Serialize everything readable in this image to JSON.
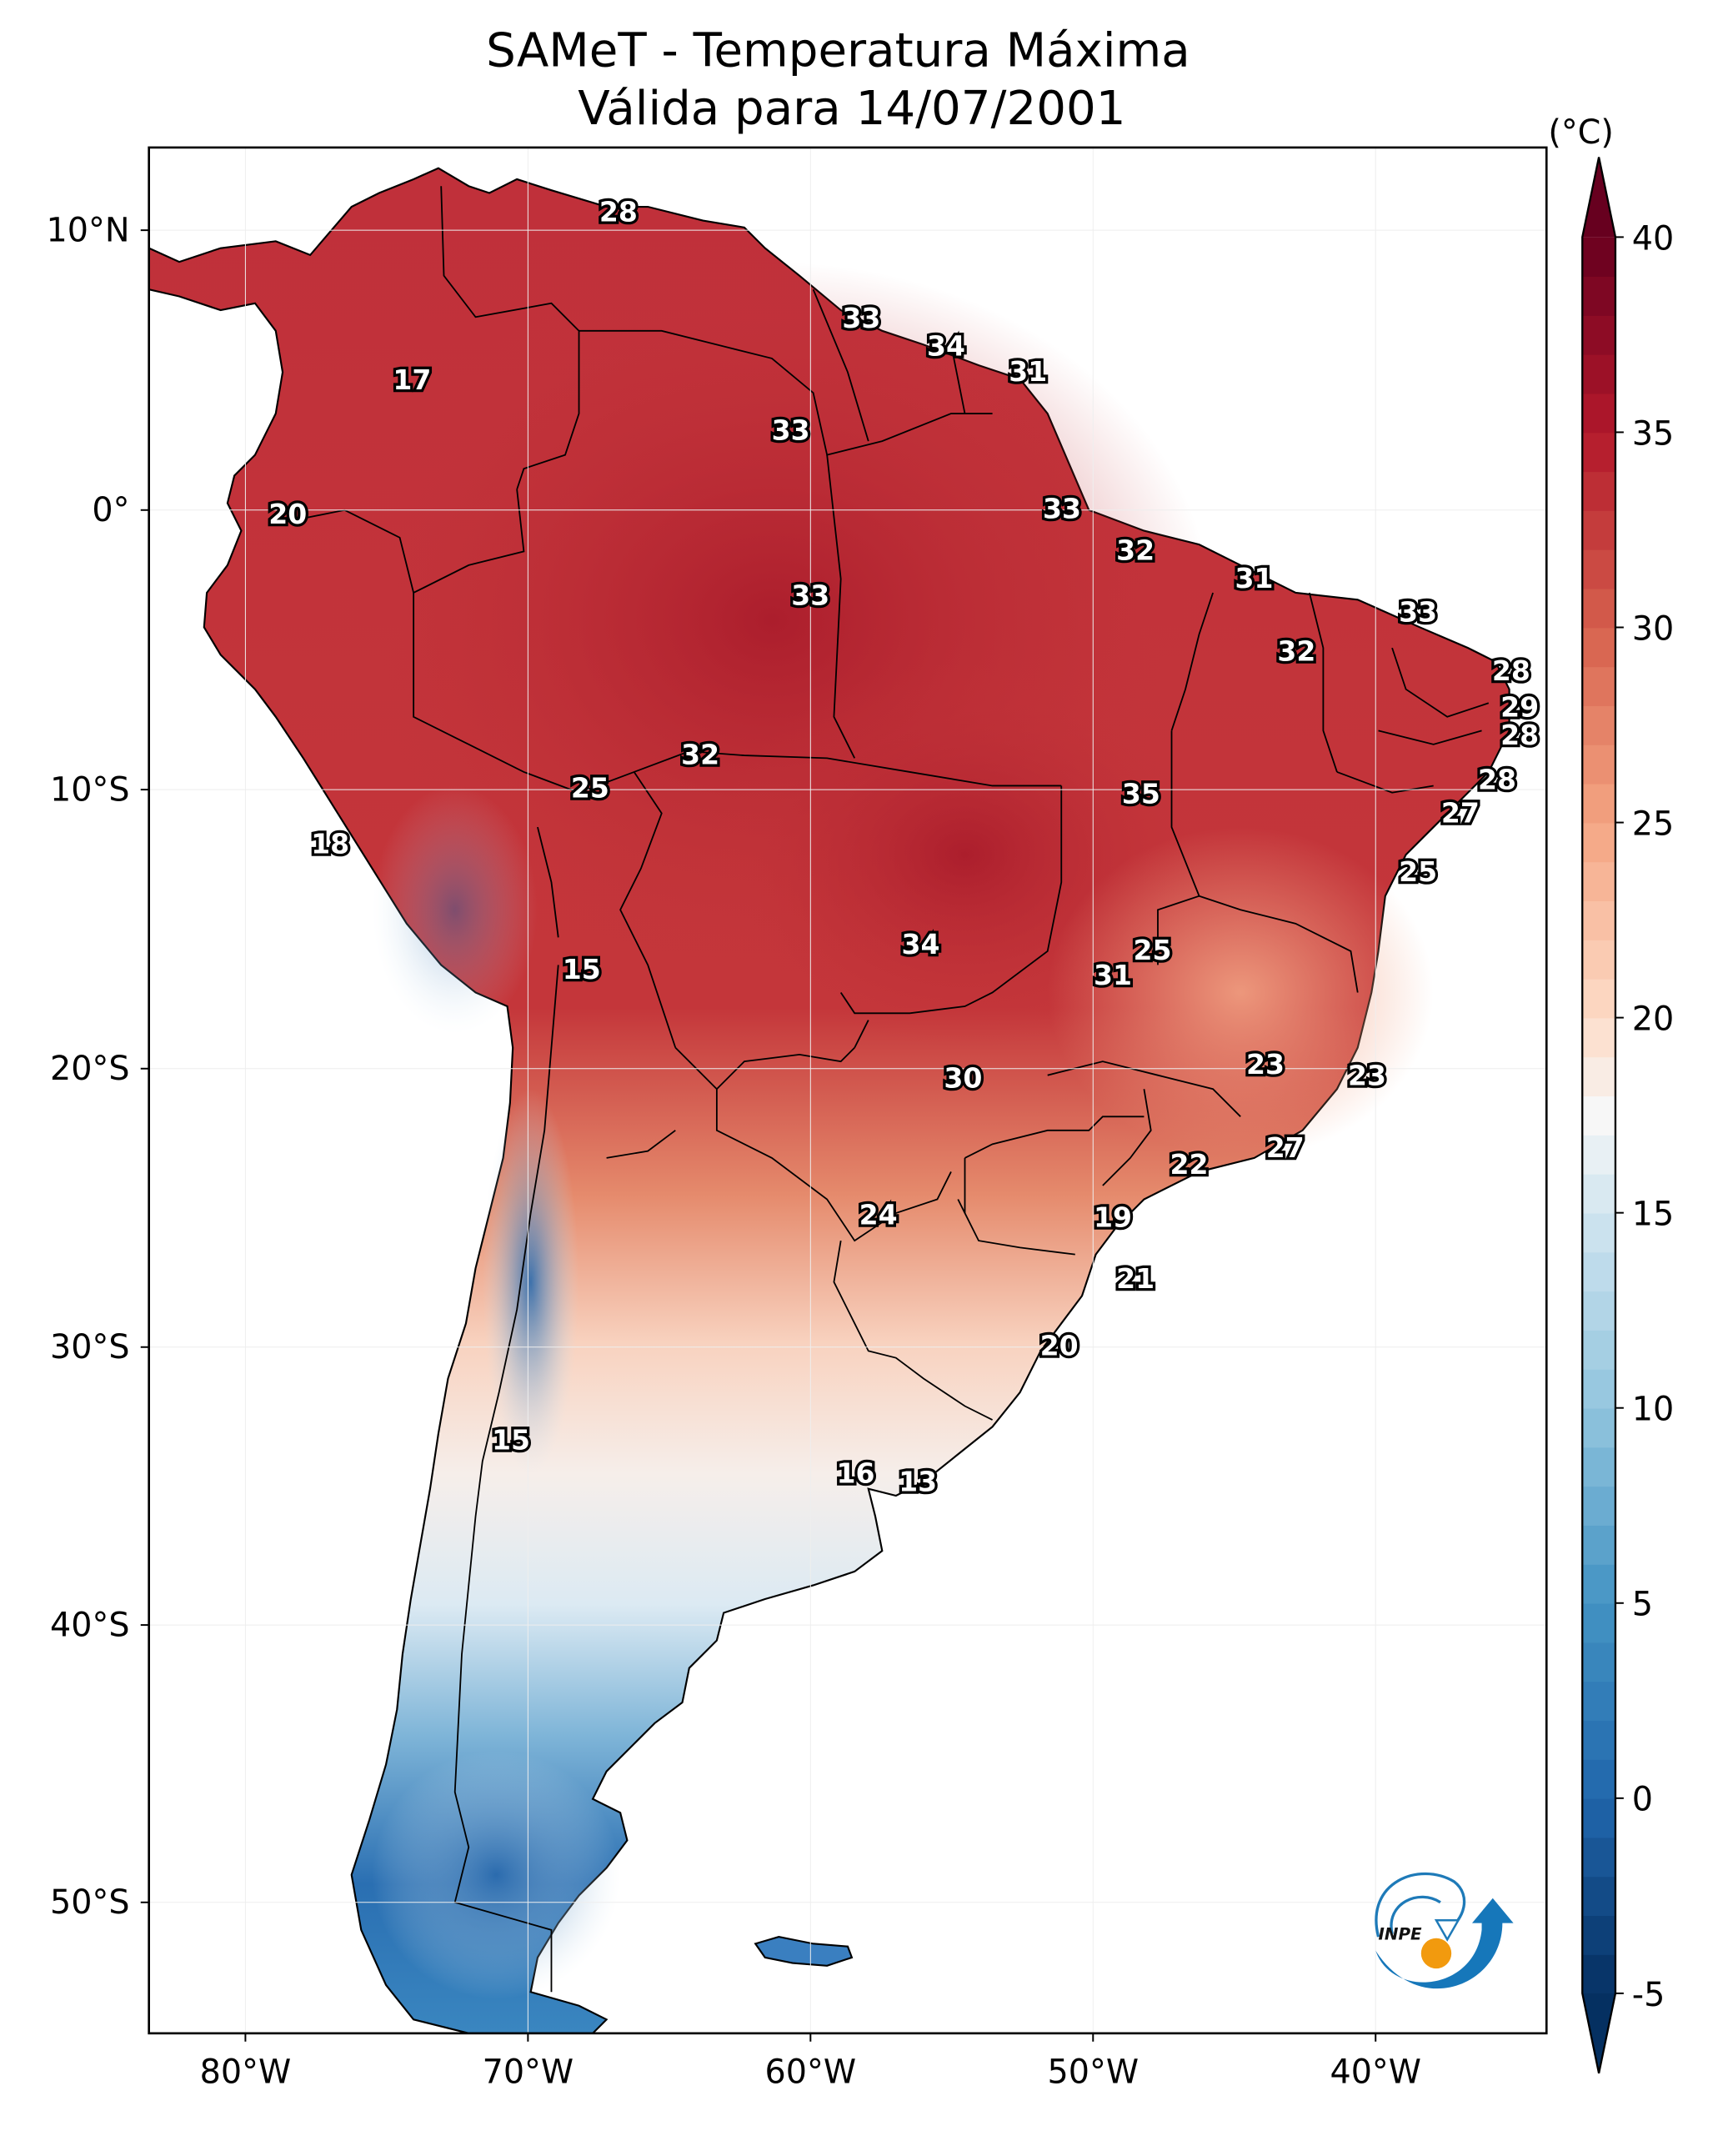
{
  "title_line1": "SAMeT - Temperatura Máxima",
  "title_line2": "Válida para 14/07/2001",
  "logo_text": "INPE",
  "chart_data": {
    "type": "heatmap",
    "title": "SAMeT - Temperatura Máxima — Válida para 14/07/2001",
    "variable": "Maximum temperature",
    "units": "°C",
    "colorbar": {
      "label": "(°C)",
      "ticks": [
        40,
        35,
        30,
        25,
        20,
        15,
        10,
        5,
        0,
        -5
      ],
      "range": [
        -5,
        40
      ],
      "extend": "both",
      "colormap": "RdBu_r",
      "stops": [
        {
          "value": -5,
          "color": "#053061"
        },
        {
          "value": 0,
          "color": "#2166ac"
        },
        {
          "value": 5,
          "color": "#4393c3"
        },
        {
          "value": 10,
          "color": "#92c5de"
        },
        {
          "value": 15,
          "color": "#d1e5f0"
        },
        {
          "value": 17.5,
          "color": "#f7f7f7"
        },
        {
          "value": 20,
          "color": "#fddbc7"
        },
        {
          "value": 25,
          "color": "#f4a582"
        },
        {
          "value": 30,
          "color": "#d6604d"
        },
        {
          "value": 35,
          "color": "#b2182b"
        },
        {
          "value": 40,
          "color": "#67001f"
        }
      ]
    },
    "x_ticks": [
      "80°W",
      "70°W",
      "60°W",
      "50°W",
      "40°W"
    ],
    "x_tick_values": [
      -80,
      -70,
      -60,
      -50,
      -40
    ],
    "y_ticks": [
      "10°N",
      "0°",
      "10°S",
      "20°S",
      "30°S",
      "40°S",
      "50°S"
    ],
    "y_tick_values": [
      10,
      0,
      -10,
      -20,
      -30,
      -40,
      -50
    ],
    "extent": {
      "lon": [
        -83,
        -34
      ],
      "lat": [
        -56,
        13
      ]
    },
    "station_labels": [
      {
        "value": 28,
        "lon": -66.8,
        "lat": 10.6
      },
      {
        "value": 17,
        "lon": -74.1,
        "lat": 4.6
      },
      {
        "value": 33,
        "lon": -58.2,
        "lat": 6.8
      },
      {
        "value": 34,
        "lon": -55.2,
        "lat": 5.8
      },
      {
        "value": 31,
        "lon": -52.3,
        "lat": 4.9
      },
      {
        "value": 33,
        "lon": -60.7,
        "lat": 2.8
      },
      {
        "value": 20,
        "lon": -78.5,
        "lat": -0.2
      },
      {
        "value": 33,
        "lon": -51.1,
        "lat": 0.0
      },
      {
        "value": 32,
        "lon": -48.5,
        "lat": -1.5
      },
      {
        "value": 33,
        "lon": -60.0,
        "lat": -3.1
      },
      {
        "value": 31,
        "lon": -44.3,
        "lat": -2.5
      },
      {
        "value": 33,
        "lon": -38.5,
        "lat": -3.7
      },
      {
        "value": 32,
        "lon": -42.8,
        "lat": -5.1
      },
      {
        "value": 28,
        "lon": -35.2,
        "lat": -5.8
      },
      {
        "value": 29,
        "lon": -34.9,
        "lat": -7.1
      },
      {
        "value": 28,
        "lon": -34.9,
        "lat": -8.1
      },
      {
        "value": 32,
        "lon": -63.9,
        "lat": -8.8
      },
      {
        "value": 25,
        "lon": -67.8,
        "lat": -10.0
      },
      {
        "value": 35,
        "lon": -48.3,
        "lat": -10.2
      },
      {
        "value": 28,
        "lon": -35.7,
        "lat": -9.7
      },
      {
        "value": 27,
        "lon": -37.0,
        "lat": -10.9
      },
      {
        "value": 18,
        "lon": -77.0,
        "lat": -12.0
      },
      {
        "value": 25,
        "lon": -38.5,
        "lat": -13.0
      },
      {
        "value": 34,
        "lon": -56.1,
        "lat": -15.6
      },
      {
        "value": 25,
        "lon": -47.9,
        "lat": -15.8
      },
      {
        "value": 31,
        "lon": -49.3,
        "lat": -16.7
      },
      {
        "value": 15,
        "lon": -68.1,
        "lat": -16.5
      },
      {
        "value": 30,
        "lon": -54.6,
        "lat": -20.4
      },
      {
        "value": 23,
        "lon": -43.9,
        "lat": -19.9
      },
      {
        "value": 23,
        "lon": -40.3,
        "lat": -20.3
      },
      {
        "value": 27,
        "lon": -43.2,
        "lat": -22.9
      },
      {
        "value": 22,
        "lon": -46.6,
        "lat": -23.5
      },
      {
        "value": 24,
        "lon": -57.6,
        "lat": -25.3
      },
      {
        "value": 19,
        "lon": -49.3,
        "lat": -25.4
      },
      {
        "value": 21,
        "lon": -48.5,
        "lat": -27.6
      },
      {
        "value": 20,
        "lon": -51.2,
        "lat": -30.0
      },
      {
        "value": 15,
        "lon": -70.6,
        "lat": -33.4
      },
      {
        "value": 16,
        "lon": -58.4,
        "lat": -34.6
      },
      {
        "value": 13,
        "lon": -56.2,
        "lat": -34.9
      }
    ]
  }
}
